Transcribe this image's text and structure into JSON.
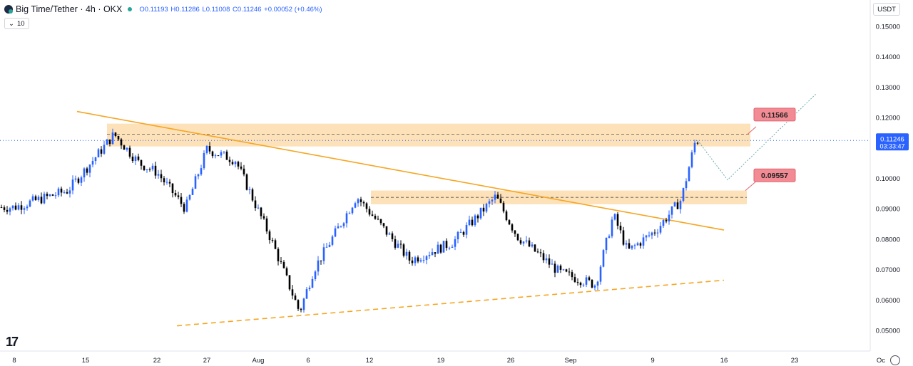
{
  "header": {
    "symbol_title": "Big Time/Tether · 4h · OKX",
    "open": "O0.11193",
    "high": "H0.11286",
    "low": "L0.11008",
    "close": "C0.11246",
    "change": "+0.00052 (+0.46%)",
    "volume_pill": "10",
    "currency": "USDT"
  },
  "price_axis": {
    "ticks": [
      "0.15000",
      "0.14000",
      "0.13000",
      "0.12000",
      "0.10000",
      "0.09000",
      "0.08000",
      "0.07000",
      "0.06000",
      "0.05000"
    ],
    "last_price": "0.11246",
    "countdown": "03:33:47"
  },
  "time_axis": {
    "ticks": [
      "8",
      "15",
      "22",
      "27",
      "Aug",
      "6",
      "12",
      "19",
      "26",
      "Sep",
      "9",
      "16",
      "23",
      "Oc"
    ]
  },
  "annotations": {
    "target_label": "0.11566",
    "pullback_label": "0.09557"
  },
  "colors": {
    "candle": "#2962ff",
    "candle_down": "#000000",
    "trendline": "#f5a623",
    "zone": "#fcd9a6",
    "label_bg": "#f28b93",
    "last_price_bg": "#2962ff"
  },
  "chart_data": {
    "type": "candlestick",
    "title": "Big Time/Tether · 4h · OKX",
    "ylim": [
      0.045,
      0.155
    ],
    "y_ticks": [
      0.15,
      0.14,
      0.13,
      0.12,
      0.1,
      0.09,
      0.08,
      0.07,
      0.06,
      0.05
    ],
    "x_ticks": [
      "8",
      "15",
      "22",
      "27",
      "Aug",
      "6",
      "12",
      "19",
      "26",
      "Sep",
      "9",
      "16",
      "23",
      "Oc"
    ],
    "price_path": [
      {
        "x": "8",
        "y": 0.0905
      },
      {
        "x": "12",
        "y": 0.096
      },
      {
        "x": "15",
        "y": 0.103
      },
      {
        "x": "18",
        "y": 0.1145
      },
      {
        "x": "20",
        "y": 0.105
      },
      {
        "x": "22",
        "y": 0.102
      },
      {
        "x": "25",
        "y": 0.09
      },
      {
        "x": "27",
        "y": 0.1095
      },
      {
        "x": "30",
        "y": 0.106
      },
      {
        "x": "Aug 3",
        "y": 0.08
      },
      {
        "x": "Aug 5",
        "y": 0.056
      },
      {
        "x": "Aug 7",
        "y": 0.07
      },
      {
        "x": "Aug 11",
        "y": 0.094
      },
      {
        "x": "Aug 13",
        "y": 0.087
      },
      {
        "x": "Aug 17",
        "y": 0.073
      },
      {
        "x": "Aug 21",
        "y": 0.079
      },
      {
        "x": "Aug 24",
        "y": 0.094
      },
      {
        "x": "Aug 27",
        "y": 0.081
      },
      {
        "x": "Sep 1",
        "y": 0.069
      },
      {
        "x": "Sep 4",
        "y": 0.065
      },
      {
        "x": "Sep 6",
        "y": 0.088
      },
      {
        "x": "Sep 8",
        "y": 0.076
      },
      {
        "x": "Sep 11",
        "y": 0.083
      },
      {
        "x": "Sep 13",
        "y": 0.093
      },
      {
        "x": "Sep 15",
        "y": 0.1125
      }
    ],
    "resistance_zone": [
      0.1105,
      0.118
    ],
    "support_zone": [
      0.0915,
      0.096
    ],
    "descending_trendline": [
      {
        "x": "13",
        "y": 0.122
      },
      {
        "x": "Sep 16",
        "y": 0.083
      }
    ],
    "ascending_dashed_line": [
      {
        "x": "22",
        "y": 0.0515
      },
      {
        "x": "Sep 16",
        "y": 0.0665
      }
    ],
    "projection_path": [
      0.1125,
      0.0995,
      0.128
    ],
    "last_price": 0.11246
  }
}
